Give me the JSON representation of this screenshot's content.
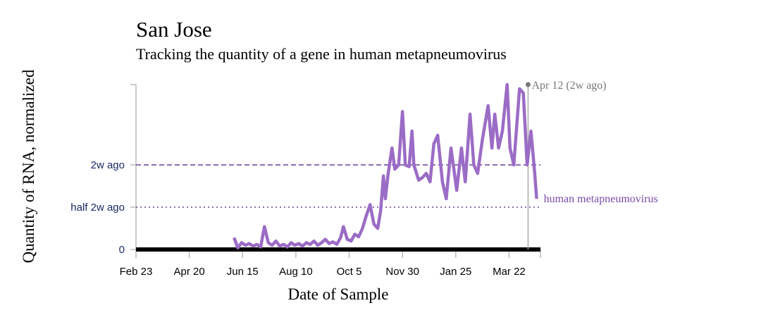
{
  "chart_data": {
    "type": "line",
    "title": "San Jose",
    "subtitle": "Tracking the quantity of a gene in human metapneumovirus",
    "x_label": "Date of Sample",
    "y_label": "Quantity of RNA, normalized",
    "xlim": [
      0,
      425
    ],
    "xticks": [
      {
        "value": 0,
        "label": "Feb 23"
      },
      {
        "value": 56,
        "label": "Apr 20"
      },
      {
        "value": 112,
        "label": "Jun 15"
      },
      {
        "value": 168,
        "label": "Aug 10"
      },
      {
        "value": 224,
        "label": "Oct 5"
      },
      {
        "value": 280,
        "label": "Nov 30"
      },
      {
        "value": 336,
        "label": "Jan 25"
      },
      {
        "value": 392,
        "label": "Mar 22"
      }
    ],
    "ylim": [
      0,
      1.95
    ],
    "yticks": [
      0,
      {
        "value": 0.5,
        "label": "half 2w ago"
      },
      {
        "value": 1,
        "label": "2w ago"
      }
    ],
    "annotation": {
      "text": "Apr 12 (2w ago)",
      "x": 412
    },
    "x": [
      103,
      107,
      111,
      115,
      119,
      123,
      127,
      131,
      135,
      139,
      143,
      147,
      151,
      155,
      159,
      163,
      167,
      171,
      175,
      179,
      183,
      187,
      191,
      195,
      199,
      203,
      207,
      211,
      215,
      218,
      222,
      226,
      230,
      234,
      238,
      242,
      246,
      250,
      254,
      257,
      260,
      262,
      265,
      269,
      272,
      276,
      280,
      283,
      287,
      290,
      292,
      297,
      301,
      305,
      309,
      313,
      317,
      322,
      326,
      331,
      337,
      342,
      346,
      351,
      355,
      359,
      364,
      370,
      374,
      377,
      381,
      385,
      390,
      393,
      397,
      403,
      407,
      411,
      415,
      419,
      421
    ],
    "series": [
      {
        "name": "human metapneumovirus",
        "color": "#9b6cc6",
        "values": [
          0.14,
          0.02,
          0.08,
          0.05,
          0.07,
          0.04,
          0.06,
          0.03,
          0.27,
          0.08,
          0.05,
          0.1,
          0.04,
          0.06,
          0.03,
          0.08,
          0.05,
          0.07,
          0.04,
          0.08,
          0.06,
          0.1,
          0.05,
          0.08,
          0.12,
          0.07,
          0.09,
          0.06,
          0.14,
          0.27,
          0.12,
          0.1,
          0.18,
          0.15,
          0.25,
          0.4,
          0.53,
          0.3,
          0.25,
          0.45,
          0.87,
          0.6,
          0.9,
          1.2,
          0.95,
          1.0,
          1.63,
          1.0,
          0.98,
          1.4,
          1.0,
          0.82,
          0.85,
          0.9,
          0.8,
          1.25,
          1.35,
          0.8,
          0.6,
          1.2,
          0.7,
          1.2,
          0.8,
          1.6,
          1.0,
          0.9,
          1.3,
          1.7,
          1.2,
          1.6,
          1.2,
          1.4,
          1.95,
          1.2,
          1.0,
          1.9,
          1.85,
          1.0,
          1.4,
          0.9,
          0.6
        ]
      }
    ]
  }
}
